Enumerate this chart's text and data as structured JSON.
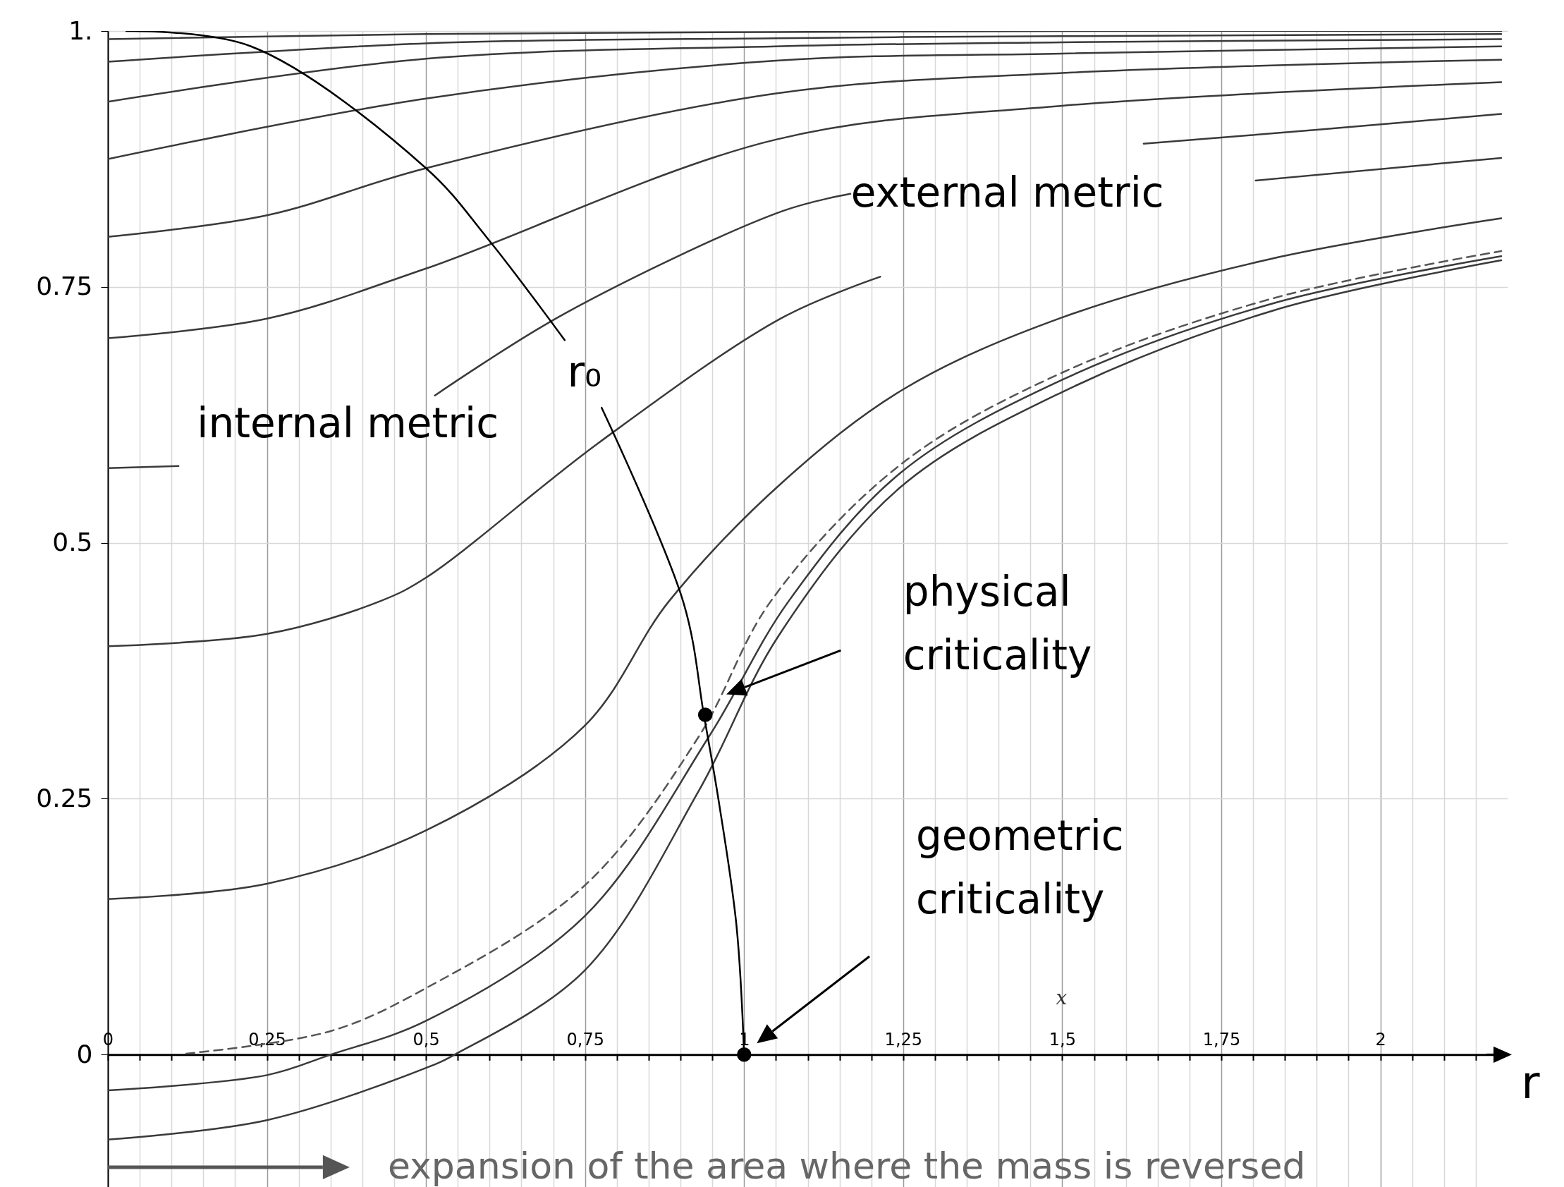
{
  "chart_data": {
    "type": "line",
    "xlabel": "r",
    "xlim": [
      0,
      2.2
    ],
    "ylim": [
      -0.13,
      1.0
    ],
    "xticks": [
      0,
      {
        "value": 0.05,
        "label": null
      },
      {
        "value": 0.1,
        "label": null
      },
      {
        "value": 0.15,
        "label": null
      },
      {
        "value": 0.2,
        "label": null
      },
      {
        "value": 0.25,
        "label": "0,25"
      },
      {
        "value": 0.3,
        "label": null
      },
      {
        "value": 0.35,
        "label": null
      },
      {
        "value": 0.4,
        "label": null
      },
      {
        "value": 0.45,
        "label": null
      },
      {
        "value": 0.5,
        "label": "0,5"
      },
      {
        "value": 0.55,
        "label": null
      },
      {
        "value": 0.6,
        "label": null
      },
      {
        "value": 0.65,
        "label": null
      },
      {
        "value": 0.7,
        "label": null
      },
      {
        "value": 0.75,
        "label": "0,75"
      },
      {
        "value": 0.8,
        "label": null
      },
      {
        "value": 0.85,
        "label": null
      },
      {
        "value": 0.9,
        "label": null
      },
      {
        "value": 0.95,
        "label": null
      },
      1,
      {
        "value": 1.05,
        "label": null
      },
      {
        "value": 1.1,
        "label": null
      },
      {
        "value": 1.15,
        "label": null
      },
      {
        "value": 1.2,
        "label": null
      },
      {
        "value": 1.25,
        "label": "1,25"
      },
      {
        "value": 1.3,
        "label": null
      },
      {
        "value": 1.35,
        "label": null
      },
      {
        "value": 1.4,
        "label": null
      },
      {
        "value": 1.45,
        "label": null
      },
      {
        "value": 1.5,
        "label": "1,5"
      },
      {
        "value": 1.55,
        "label": null
      },
      {
        "value": 1.6,
        "label": null
      },
      {
        "value": 1.65,
        "label": null
      },
      {
        "value": 1.7,
        "label": null
      },
      {
        "value": 1.75,
        "label": "1,75"
      },
      {
        "value": 1.8,
        "label": null
      },
      {
        "value": 1.85,
        "label": null
      },
      {
        "value": 1.9,
        "label": null
      },
      {
        "value": 1.95,
        "label": null
      },
      2,
      {
        "value": 2.05,
        "label": null
      },
      {
        "value": 2.1,
        "label": null
      },
      {
        "value": 2.15,
        "label": null
      }
    ],
    "yticks": [
      0,
      0.25,
      0.5,
      0.75,
      {
        "value": 1,
        "label": "1."
      }
    ],
    "grid": true,
    "series": [
      {
        "color": "#3a3a3a",
        "x": [
          0,
          0.5,
          1.05,
          1.5,
          2.19
        ],
        "values": [
          0.992,
          0.997,
          0.999,
          1.0,
          1.0
        ]
      },
      {
        "color": "#3a3a3a",
        "x": [
          0,
          0.5,
          1.05,
          1.5,
          2.19
        ],
        "values": [
          0.97,
          0.988,
          0.993,
          0.995,
          0.997
        ]
      },
      {
        "color": "#3a3a3a",
        "x": [
          0,
          0.5,
          1.05,
          1.5,
          2.19
        ],
        "values": [
          0.931,
          0.973,
          0.985,
          0.989,
          0.992
        ]
      },
      {
        "color": "#3a3a3a",
        "x": [
          0,
          0.5,
          1.05,
          1.5,
          2.19
        ],
        "values": [
          0.875,
          0.934,
          0.971,
          0.978,
          0.985
        ]
      },
      {
        "color": "#3a3a3a",
        "x": [
          0,
          0.25,
          0.5,
          1.05,
          1.5,
          2.19
        ],
        "values": [
          0.799,
          0.82,
          0.866,
          0.939,
          0.959,
          0.972
        ]
      },
      {
        "color": "#3a3a3a",
        "x": [
          0,
          0.25,
          0.5,
          1.05,
          1.5,
          2.19
        ],
        "values": [
          0.7,
          0.719,
          0.768,
          0.894,
          0.927,
          0.95
        ]
      },
      {
        "color": "#3a3a3a",
        "x": [
          0,
          0.111,
          0.3,
          0.514,
          0.718,
          1.06,
          1.167,
          1.5,
          1.804,
          2.19
        ],
        "values": [
          0.573,
          0.575,
          null,
          0.644,
          0.724,
          0.824,
          0.841,
          null,
          0.854,
          0.876
        ]
      },
      {
        "color": "#3a3a3a",
        "x": [
          0,
          0.25,
          0.428,
          0.5,
          0.772,
          1.06,
          1.214
        ],
        "values": [
          0.399,
          0.411,
          0.443,
          0.466,
          0.598,
          0.72,
          0.76
        ]
      },
      {
        "color": "#3a3a3a",
        "x": [
          0,
          0.25,
          0.5,
          0.749,
          0.882,
          1.06,
          1.253,
          1.499,
          1.832,
          2.19
        ],
        "values": [
          0.152,
          0.167,
          0.219,
          0.321,
          0.443,
          0.559,
          0.651,
          0.72,
          0.778,
          0.817
        ]
      },
      {
        "color": "#3a3a3a",
        "x": [
          1.628,
          1.91,
          2.19
        ],
        "values": [
          0.89,
          0.904,
          0.919
        ]
      },
      {
        "color": "#555555",
        "line_style": "dashed",
        "x": [
          0.123,
          0.35,
          0.5,
          0.749,
          0.929,
          1.042,
          1.245,
          1.499,
          1.832,
          2.19
        ],
        "values": [
          0.001,
          0.023,
          0.065,
          0.165,
          0.311,
          0.443,
          0.576,
          0.666,
          0.739,
          0.785
        ]
      },
      {
        "color": "#3a3a3a",
        "x": [
          0,
          0.25,
          0.35,
          0.5,
          0.749,
          0.945,
          1.07,
          1.245,
          1.499,
          1.832,
          2.19
        ],
        "values": [
          -0.035,
          -0.02,
          0,
          0.033,
          0.135,
          0.311,
          0.443,
          0.568,
          0.659,
          0.734,
          0.78
        ]
      },
      {
        "color": "#3a3a3a",
        "x": [
          0,
          0.25,
          0.5,
          0.545,
          0.749,
          0.929,
          1.054,
          1.245,
          1.499,
          1.832,
          2.19
        ],
        "values": [
          -0.083,
          -0.064,
          -0.013,
          0,
          0.082,
          0.258,
          0.409,
          0.554,
          0.647,
          0.727,
          0.776
        ]
      },
      {
        "color": "#000000",
        "x": [
          0.029,
          0.225,
          0.5,
          0.596,
          0.718,
          0.747,
          0.776,
          0.905,
          0.937,
          0.96,
          0.988,
          1
        ],
        "values": [
          1.0,
          0.985,
          0.866,
          0.798,
          0.698,
          null,
          0.632,
          0.441,
          0.331,
          0.248,
          0.126,
          0
        ]
      },
      {
        "type": "scatter",
        "color": "#000000",
        "marker": "circle",
        "x": [
          0.939,
          1
        ],
        "values": [
          0.332,
          0
        ]
      }
    ],
    "annotations": [
      "internal metric",
      "external metric",
      "r₀",
      "physical criticality",
      "geometric criticality",
      "expansion of the area where the mass is reversed",
      "x"
    ]
  }
}
